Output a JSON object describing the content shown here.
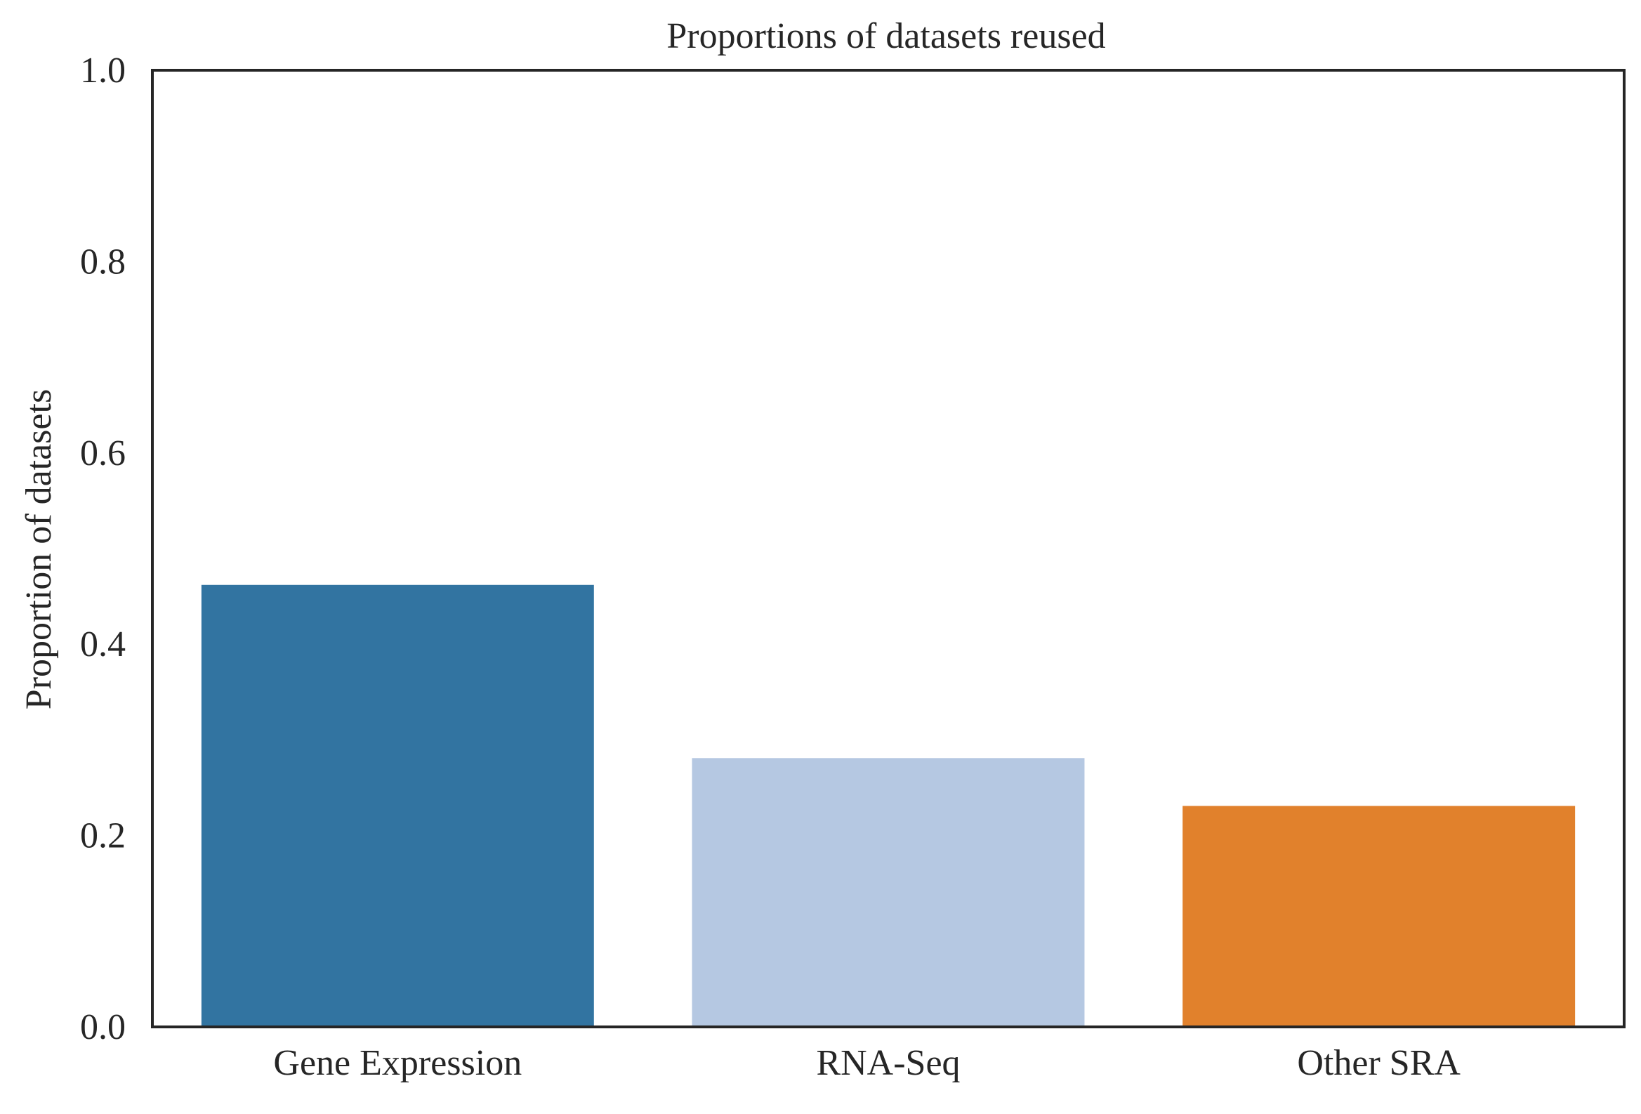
{
  "chart_data": {
    "type": "bar",
    "title": "Proportions of datasets reused",
    "xlabel": "",
    "ylabel": "Proportion of datasets",
    "categories": [
      "Gene Expression",
      "RNA-Seq",
      "Other SRA"
    ],
    "values": [
      0.462,
      0.281,
      0.231
    ],
    "colors": [
      "#3274a1",
      "#b5c8e2",
      "#e1812c"
    ],
    "ylim": [
      0,
      1
    ],
    "yticks": [
      0.0,
      0.2,
      0.4,
      0.6,
      0.8,
      1.0
    ],
    "ytick_labels": [
      "0.0",
      "0.2",
      "0.4",
      "0.6",
      "0.8",
      "1.0"
    ],
    "grid": false,
    "legend": "none"
  }
}
